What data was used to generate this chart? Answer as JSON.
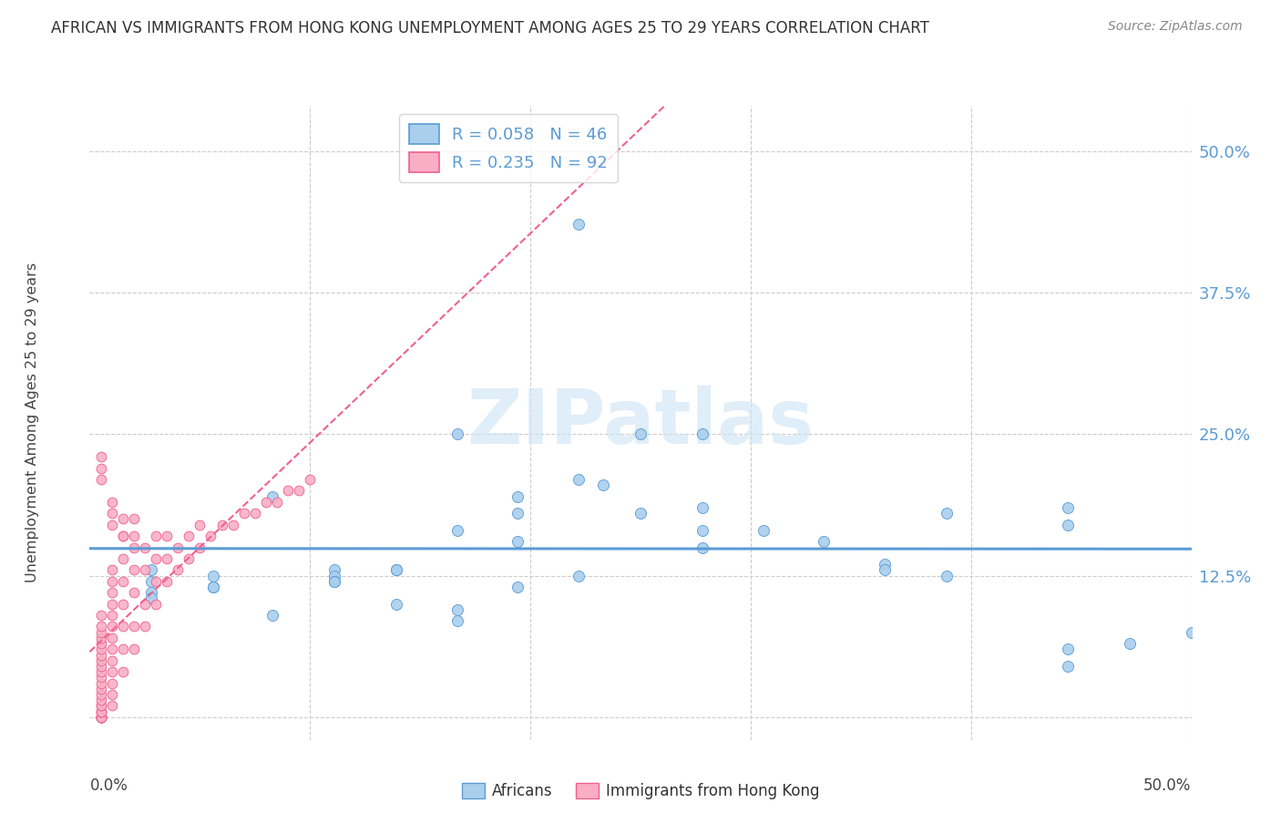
{
  "title": "AFRICAN VS IMMIGRANTS FROM HONG KONG UNEMPLOYMENT AMONG AGES 25 TO 29 YEARS CORRELATION CHART",
  "source": "Source: ZipAtlas.com",
  "ylabel": "Unemployment Among Ages 25 to 29 years",
  "ytick_labels": [
    "12.5%",
    "25.0%",
    "37.5%",
    "50.0%"
  ],
  "ytick_values": [
    0.125,
    0.25,
    0.375,
    0.5
  ],
  "xlim": [
    0.0,
    0.5
  ],
  "ylim": [
    -0.02,
    0.54
  ],
  "african_color": "#aacfed",
  "hk_color": "#f8afc5",
  "african_line_color": "#5b9bd5",
  "hk_line_color": "#f06090",
  "watermark": "ZIPatlas",
  "africans_x": [
    0.222,
    0.278,
    0.167,
    0.233,
    0.194,
    0.194,
    0.25,
    0.222,
    0.167,
    0.278,
    0.194,
    0.25,
    0.306,
    0.278,
    0.278,
    0.361,
    0.333,
    0.389,
    0.444,
    0.444,
    0.361,
    0.389,
    0.444,
    0.444,
    0.028,
    0.028,
    0.028,
    0.056,
    0.056,
    0.056,
    0.083,
    0.111,
    0.111,
    0.139,
    0.111,
    0.139,
    0.139,
    0.111,
    0.167,
    0.167,
    0.194,
    0.222,
    0.5,
    0.472,
    0.083,
    0.028
  ],
  "africans_y": [
    0.435,
    0.25,
    0.25,
    0.205,
    0.195,
    0.155,
    0.25,
    0.21,
    0.165,
    0.165,
    0.18,
    0.18,
    0.165,
    0.15,
    0.185,
    0.135,
    0.155,
    0.18,
    0.185,
    0.17,
    0.13,
    0.125,
    0.06,
    0.045,
    0.13,
    0.12,
    0.11,
    0.125,
    0.115,
    0.115,
    0.09,
    0.13,
    0.125,
    0.13,
    0.12,
    0.1,
    0.13,
    0.12,
    0.095,
    0.085,
    0.115,
    0.125,
    0.075,
    0.065,
    0.195,
    0.105
  ],
  "hk_x": [
    0.005,
    0.005,
    0.005,
    0.005,
    0.005,
    0.005,
    0.005,
    0.005,
    0.005,
    0.005,
    0.005,
    0.005,
    0.005,
    0.005,
    0.005,
    0.005,
    0.005,
    0.005,
    0.005,
    0.005,
    0.005,
    0.005,
    0.005,
    0.005,
    0.005,
    0.005,
    0.005,
    0.005,
    0.005,
    0.005,
    0.01,
    0.01,
    0.01,
    0.01,
    0.01,
    0.01,
    0.01,
    0.01,
    0.01,
    0.01,
    0.01,
    0.01,
    0.01,
    0.015,
    0.015,
    0.015,
    0.015,
    0.015,
    0.015,
    0.015,
    0.02,
    0.02,
    0.02,
    0.02,
    0.02,
    0.025,
    0.025,
    0.025,
    0.025,
    0.03,
    0.03,
    0.03,
    0.03,
    0.035,
    0.035,
    0.035,
    0.04,
    0.04,
    0.045,
    0.045,
    0.05,
    0.05,
    0.055,
    0.06,
    0.065,
    0.07,
    0.075,
    0.08,
    0.085,
    0.09,
    0.095,
    0.1,
    0.005,
    0.005,
    0.005,
    0.01,
    0.01,
    0.01,
    0.015,
    0.015,
    0.02,
    0.02
  ],
  "hk_y": [
    0.0,
    0.0,
    0.0,
    0.0,
    0.0,
    0.0,
    0.0,
    0.0,
    0.0,
    0.0,
    0.005,
    0.005,
    0.005,
    0.01,
    0.01,
    0.015,
    0.02,
    0.025,
    0.03,
    0.035,
    0.04,
    0.045,
    0.05,
    0.055,
    0.06,
    0.065,
    0.07,
    0.075,
    0.08,
    0.09,
    0.01,
    0.02,
    0.03,
    0.04,
    0.05,
    0.06,
    0.07,
    0.08,
    0.09,
    0.1,
    0.11,
    0.12,
    0.13,
    0.04,
    0.06,
    0.08,
    0.1,
    0.12,
    0.14,
    0.16,
    0.06,
    0.08,
    0.11,
    0.13,
    0.15,
    0.08,
    0.1,
    0.13,
    0.15,
    0.1,
    0.12,
    0.14,
    0.16,
    0.12,
    0.14,
    0.16,
    0.13,
    0.15,
    0.14,
    0.16,
    0.15,
    0.17,
    0.16,
    0.17,
    0.17,
    0.18,
    0.18,
    0.19,
    0.19,
    0.2,
    0.2,
    0.21,
    0.21,
    0.22,
    0.23,
    0.17,
    0.18,
    0.19,
    0.16,
    0.175,
    0.16,
    0.175
  ]
}
